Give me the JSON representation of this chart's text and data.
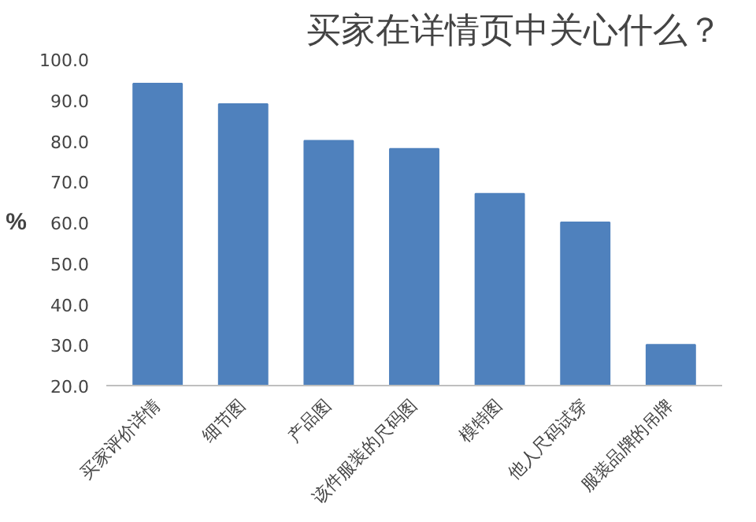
{
  "chart_data": {
    "type": "bar",
    "title": "买家在详情页中关心什么？",
    "ylabel": "%",
    "categories": [
      "买家评价详情",
      "细节图",
      "产品图",
      "该件服装的尺码图",
      "模特图",
      "他人尺码试穿",
      "服装品牌的吊牌"
    ],
    "values": [
      94,
      89,
      80,
      78,
      67,
      60,
      30
    ],
    "color": "#4f81bd",
    "ylim": [
      20,
      100
    ],
    "yticks": [
      {
        "value": 20,
        "label": "20.0"
      },
      {
        "value": 30,
        "label": "30.0"
      },
      {
        "value": 40,
        "label": "40.0"
      },
      {
        "value": 50,
        "label": "50.0"
      },
      {
        "value": 60,
        "label": "60.0"
      },
      {
        "value": 70,
        "label": "70.0"
      },
      {
        "value": 80,
        "label": "80.0"
      },
      {
        "value": 90,
        "label": "90.0"
      },
      {
        "value": 100,
        "label": "100.0"
      }
    ],
    "grid": false
  }
}
